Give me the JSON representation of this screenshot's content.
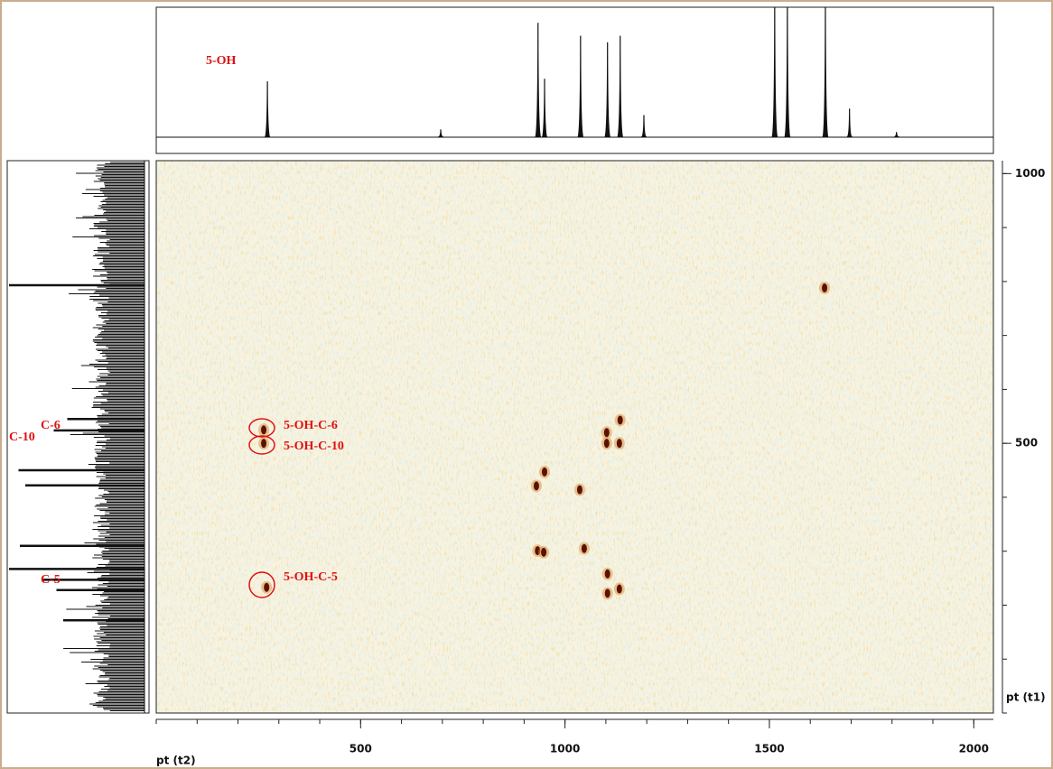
{
  "chart_data": {
    "type": "scatter",
    "xlabel": "pt (t2)",
    "ylabel": "pt (t1)",
    "xlim": [
      0,
      2048
    ],
    "xticks": [
      500,
      1000,
      1500,
      2000
    ],
    "ylim": [
      0,
      1024
    ],
    "yticks": [
      500,
      1000
    ],
    "series": [
      {
        "name": "cross peaks",
        "color": "#5a1200",
        "x": [
          263,
          263,
          270,
          1135,
          1102,
          1102,
          1133,
          950,
          930,
          1036,
          933,
          948,
          1047,
          1104,
          1104,
          1133,
          1635
        ],
        "values": [
          525,
          500,
          233,
          543,
          520,
          500,
          500,
          447,
          421,
          414,
          301,
          298,
          305,
          258,
          222,
          230,
          788
        ]
      }
    ],
    "top_projection": {
      "x": [
        272,
        696,
        934,
        950,
        1038,
        1104,
        1135,
        1193,
        1513,
        1544,
        1637,
        1696,
        1811
      ],
      "values": [
        43,
        6,
        88,
        45,
        78,
        73,
        78,
        17,
        110,
        110,
        110,
        22,
        4
      ]
    },
    "left_projection": {
      "y": [
        793,
        545,
        524,
        450,
        422,
        310,
        267,
        247,
        228,
        172
      ],
      "values": [
        100,
        57,
        67,
        93,
        88,
        92,
        100,
        75,
        65,
        60
      ]
    },
    "annotations": [
      "5-OH",
      "5-OH-C-6",
      "5-OH-C-10",
      "5-OH-C-5",
      "C-6",
      "C-10",
      "C-5"
    ]
  }
}
